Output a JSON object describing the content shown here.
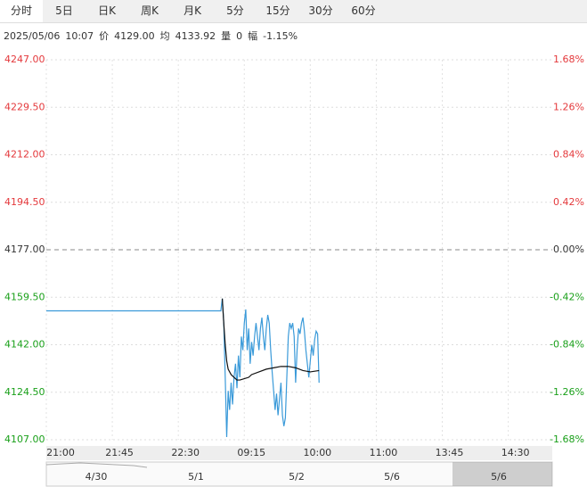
{
  "tabs": [
    "分时",
    "5日",
    "日K",
    "周K",
    "月K",
    "5分",
    "15分",
    "30分",
    "60分"
  ],
  "info": {
    "date": "2025/05/06",
    "time": "10:07",
    "price_label": "价",
    "price": "4129.00",
    "avg_label": "均",
    "avg": "4133.92",
    "vol_label": "量",
    "vol": "0",
    "chg_label": "幅",
    "chg": "-1.15%"
  },
  "chart_data": {
    "type": "line",
    "xlim": [
      0,
      345
    ],
    "ylim": [
      4107,
      4247
    ],
    "y2lim": [
      -1.68,
      1.68
    ],
    "xticks": [
      {
        "value": 0,
        "label": "21:00"
      },
      {
        "value": 45,
        "label": "21:45"
      },
      {
        "value": 90,
        "label": "22:30"
      },
      {
        "value": 135,
        "label": "09:15"
      },
      {
        "value": 180,
        "label": "10:00"
      },
      {
        "value": 225,
        "label": "11:00"
      },
      {
        "value": 270,
        "label": "13:45"
      },
      {
        "value": 315,
        "label": "14:30"
      }
    ],
    "yticks": [
      {
        "value": 4247,
        "label": "4247.00",
        "color": "#e4393c"
      },
      {
        "value": 4229.5,
        "label": "4229.50",
        "color": "#e4393c"
      },
      {
        "value": 4212,
        "label": "4212.00",
        "color": "#e4393c"
      },
      {
        "value": 4194.5,
        "label": "4194.50",
        "color": "#e4393c"
      },
      {
        "value": 4177,
        "label": "4177.00",
        "color": "#333333"
      },
      {
        "value": 4159.5,
        "label": "4159.50",
        "color": "#1aa01a"
      },
      {
        "value": 4142,
        "label": "4142.00",
        "color": "#1aa01a"
      },
      {
        "value": 4124.5,
        "label": "4124.50",
        "color": "#1aa01a"
      },
      {
        "value": 4107,
        "label": "4107.00",
        "color": "#1aa01a"
      }
    ],
    "y2ticks": [
      {
        "value": 1.68,
        "label": "1.68%",
        "color": "#e4393c"
      },
      {
        "value": 1.26,
        "label": "1.26%",
        "color": "#e4393c"
      },
      {
        "value": 0.84,
        "label": "0.84%",
        "color": "#e4393c"
      },
      {
        "value": 0.42,
        "label": "0.42%",
        "color": "#e4393c"
      },
      {
        "value": 0,
        "label": "0.00%",
        "color": "#333333"
      },
      {
        "value": -0.42,
        "label": "-0.42%",
        "color": "#1aa01a"
      },
      {
        "value": -0.84,
        "label": "-0.84%",
        "color": "#1aa01a"
      },
      {
        "value": -1.26,
        "label": "-1.26%",
        "color": "#1aa01a"
      },
      {
        "value": -1.68,
        "label": "-1.68%",
        "color": "#1aa01a"
      }
    ],
    "series": [
      {
        "name": "价",
        "color": "#3a9ad9",
        "x": [
          0,
          119,
          120,
          121,
          122,
          123,
          124,
          125,
          126,
          127,
          128,
          129,
          130,
          131,
          132,
          133,
          134,
          135,
          136,
          137,
          138,
          139,
          140,
          141,
          142,
          143,
          144,
          145,
          146,
          147,
          148,
          149,
          150,
          151,
          152,
          153,
          154,
          155,
          156,
          157,
          158,
          159,
          160,
          161,
          162,
          163,
          164,
          165,
          166,
          167,
          168,
          169,
          170,
          171,
          172,
          173,
          174,
          175,
          176,
          177,
          178,
          179,
          180,
          181,
          182,
          183,
          184,
          185,
          186
        ],
        "values": [
          4154.5,
          4154.5,
          4159,
          4150,
          4130,
          4108,
          4125,
          4118,
          4128,
          4120,
          4130,
          4135,
          4126,
          4138,
          4130,
          4145,
          4140,
          4150,
          4155,
          4140,
          4148,
          4135,
          4143,
          4138,
          4145,
          4150,
          4145,
          4140,
          4148,
          4152,
          4145,
          4140,
          4148,
          4153,
          4150,
          4140,
          4132,
          4125,
          4118,
          4124,
          4116,
          4122,
          4128,
          4116,
          4112,
          4115,
          4130,
          4145,
          4150,
          4148,
          4150,
          4145,
          4128,
          4140,
          4148,
          4146,
          4150,
          4152,
          4147,
          4140,
          4135,
          4130,
          4136,
          4142,
          4138,
          4144,
          4147,
          4146,
          4128
        ]
      },
      {
        "name": "均",
        "color": "#111111",
        "x": [
          120,
          121,
          122,
          123,
          124,
          126,
          128,
          130,
          132,
          135,
          138,
          140,
          145,
          150,
          155,
          160,
          165,
          170,
          175,
          180,
          186
        ],
        "values": [
          4159,
          4150,
          4142,
          4136,
          4133,
          4131,
          4130,
          4129,
          4129,
          4129.5,
          4130,
          4131,
          4132,
          4133,
          4133.5,
          4134,
          4134,
          4133.5,
          4132.5,
          4132,
          4132.5
        ]
      }
    ],
    "nav_labels": [
      "4/30",
      "5/1",
      "5/2",
      "5/6",
      "5/6"
    ]
  }
}
